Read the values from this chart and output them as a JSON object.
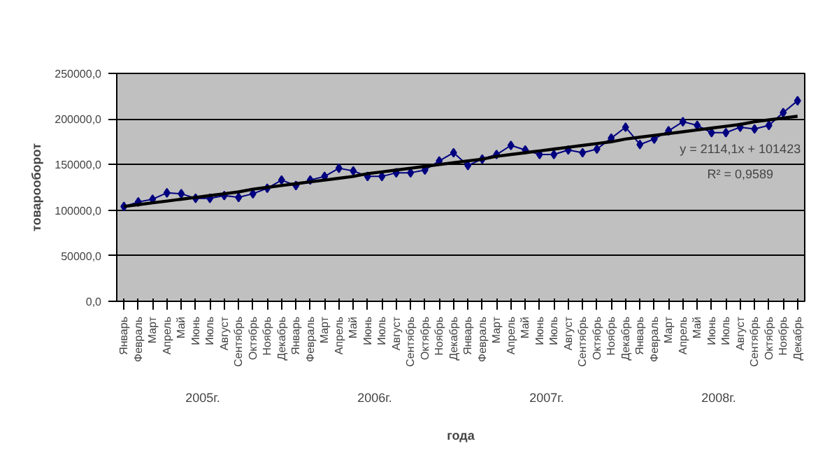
{
  "chart_data": {
    "type": "line",
    "xlabel": "года",
    "ylabel": "товарооборот",
    "categories": [
      "Январь",
      "Февраль",
      "Март",
      "Апрель",
      "Май",
      "Июнь",
      "Июль",
      "Август",
      "Сентябрь",
      "Октябрь",
      "Ноябрь",
      "Декабрь",
      "Январь",
      "Февраль",
      "Март",
      "Апрель",
      "Май",
      "Июнь",
      "Июль",
      "Август",
      "Сентябрь",
      "Октябрь",
      "Ноябрь",
      "Декабрь",
      "Январь",
      "Февраль",
      "Март",
      "Апрель",
      "Май",
      "Июнь",
      "Июль",
      "Август",
      "Сентябрь",
      "Октябрь",
      "Ноябрь",
      "Декабрь",
      "Январь",
      "Февраль",
      "Март",
      "Апрель",
      "Май",
      "Июнь",
      "Июль",
      "Август",
      "Сентябрь",
      "Октябрь",
      "Ноябрь",
      "Декабрь"
    ],
    "series": [
      {
        "color": "#000080",
        "marker": "diamond",
        "values": [
          104000,
          109000,
          112000,
          119000,
          118000,
          113000,
          113000,
          116000,
          114000,
          118000,
          124000,
          133000,
          127000,
          133000,
          137000,
          146000,
          143000,
          137000,
          137000,
          141000,
          141000,
          144000,
          154000,
          163000,
          149000,
          156000,
          161000,
          171000,
          166000,
          161000,
          161000,
          166000,
          163000,
          167000,
          179000,
          191000,
          172000,
          178000,
          187000,
          197000,
          193000,
          185000,
          185000,
          191000,
          189000,
          193000,
          207000,
          220000
        ]
      },
      {
        "color": "#000000",
        "marker": "none",
        "values": [
          104000,
          106000,
          108000,
          110000,
          112000,
          114000,
          116000,
          118000,
          120000,
          123000,
          125000,
          127000,
          129000,
          131000,
          133000,
          135000,
          137000,
          140000,
          142000,
          144000,
          146000,
          148000,
          150000,
          152000,
          154000,
          156000,
          159000,
          161000,
          163000,
          165000,
          167000,
          169000,
          171000,
          173000,
          175000,
          178000,
          180000,
          182000,
          184000,
          186000,
          188000,
          190000,
          192000,
          194000,
          197000,
          199000,
          201000,
          203000
        ]
      }
    ],
    "ylim": [
      0,
      250000
    ],
    "yticks": [
      {
        "value": 0,
        "label": "0,0"
      },
      {
        "value": 50000,
        "label": "50000,0"
      },
      {
        "value": 100000,
        "label": "100000,0"
      },
      {
        "value": 150000,
        "label": "150000,0"
      },
      {
        "value": 200000,
        "label": "200000,0"
      },
      {
        "value": 250000,
        "label": "250000,0"
      }
    ],
    "grid": "y",
    "annotations": [
      "y = 2114,1x + 101423",
      "R² = 0,9589",
      "2005г.",
      "2006г.",
      "2007г.",
      "2008г."
    ]
  }
}
